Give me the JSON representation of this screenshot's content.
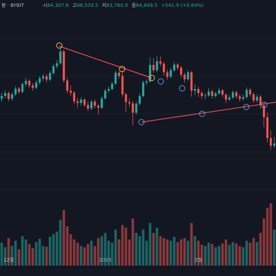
{
  "header": {
    "symbol": "봉 · BYBIT",
    "open_label": "시",
    "open": "84,307.6",
    "high_label": "고",
    "high": "86,533.5",
    "low_label": "저",
    "low": "83,760.9",
    "close_label": "종",
    "close": "84,849.5",
    "change": "+541.9 (+0.64%)"
  },
  "chart_data": {
    "type": "candlestick",
    "categories": [
      null,
      null,
      "12월",
      null,
      null,
      null,
      null,
      null,
      null,
      null,
      null,
      null,
      null,
      null,
      null,
      null,
      null,
      null,
      null,
      null,
      null,
      null,
      null,
      null,
      null,
      null,
      null,
      null,
      null,
      null,
      "2025",
      null,
      null,
      null,
      null,
      null,
      null,
      null,
      null,
      null,
      null,
      null,
      null,
      null,
      null,
      null,
      null,
      null,
      null,
      null,
      null,
      null,
      null,
      null,
      null,
      null,
      null,
      "2월",
      null,
      null,
      null,
      null,
      null,
      null,
      null,
      null,
      null,
      null,
      null,
      null,
      null,
      null,
      null,
      null,
      null,
      null,
      null,
      null,
      null,
      null
    ],
    "open": [
      95800,
      96500,
      97200,
      95800,
      96900,
      98300,
      97500,
      99400,
      100200,
      99100,
      98500,
      99800,
      100800,
      101300,
      100500,
      102100,
      103800,
      104500,
      107400,
      100300,
      97800,
      97300,
      95200,
      94800,
      95600,
      94300,
      93400,
      95100,
      94100,
      93600,
      95900,
      97800,
      98200,
      99500,
      102200,
      101400,
      96900,
      95000,
      94700,
      92400,
      94600,
      96500,
      99800,
      100100,
      104100,
      102800,
      105000,
      104400,
      102300,
      101200,
      102800,
      104200,
      103400,
      101700,
      100600,
      102300,
      97800,
      98200,
      97200,
      96500,
      96600,
      97600,
      96500,
      97100,
      97900,
      96800,
      95600,
      96100,
      97400,
      96400,
      95800,
      96200,
      98000,
      96900,
      95400,
      96300,
      94200,
      91300,
      86200,
      84307.6
    ],
    "high": [
      97300,
      97900,
      97600,
      97400,
      98900,
      98700,
      99900,
      101000,
      100600,
      99600,
      100300,
      101400,
      102000,
      101900,
      102600,
      104300,
      105300,
      108300,
      107800,
      101000,
      99100,
      97700,
      96000,
      96200,
      96000,
      95100,
      95500,
      95700,
      94500,
      96400,
      98200,
      98800,
      99900,
      102700,
      102600,
      102700,
      97300,
      95900,
      95300,
      95100,
      97100,
      100300,
      100700,
      106000,
      105800,
      106400,
      106200,
      104900,
      103000,
      103400,
      104800,
      104600,
      103900,
      102200,
      102800,
      102600,
      99400,
      98700,
      97800,
      97200,
      98400,
      98100,
      97600,
      98500,
      98200,
      97200,
      96700,
      97900,
      97800,
      96900,
      96800,
      98600,
      98400,
      97300,
      96900,
      96700,
      94500,
      92400,
      88100,
      86533.5
    ],
    "low": [
      95100,
      96000,
      95200,
      95300,
      96500,
      97000,
      97200,
      98900,
      98400,
      97800,
      98100,
      99300,
      100200,
      99800,
      100100,
      101700,
      103200,
      104100,
      99800,
      97200,
      96500,
      94500,
      93600,
      94100,
      93800,
      92800,
      93100,
      93500,
      91900,
      93300,
      95600,
      97300,
      97900,
      99200,
      100800,
      96300,
      92600,
      93800,
      89300,
      91900,
      94200,
      96200,
      99200,
      99700,
      102200,
      102300,
      103800,
      101600,
      100500,
      100800,
      102400,
      102800,
      101000,
      99700,
      100200,
      96300,
      96700,
      96200,
      95800,
      95700,
      96300,
      95900,
      96100,
      96800,
      96200,
      94800,
      95300,
      95800,
      95900,
      95100,
      95400,
      95900,
      96300,
      94800,
      95000,
      93400,
      88900,
      85100,
      83300,
      83760.9
    ],
    "close": [
      96500,
      97200,
      95800,
      96900,
      98300,
      97500,
      99400,
      100200,
      99100,
      98500,
      99800,
      100800,
      101300,
      100500,
      102100,
      103800,
      104500,
      107400,
      100300,
      97800,
      97300,
      95200,
      94800,
      95600,
      94300,
      93400,
      95100,
      94100,
      93600,
      95900,
      97800,
      98200,
      99500,
      102200,
      101400,
      96900,
      95000,
      94700,
      92400,
      94600,
      96500,
      99800,
      100100,
      104100,
      102800,
      105000,
      104400,
      102300,
      101200,
      102800,
      104200,
      103400,
      101700,
      100600,
      102300,
      97800,
      98200,
      97200,
      96500,
      96600,
      97600,
      96500,
      97100,
      97900,
      96800,
      95600,
      96100,
      97400,
      96400,
      95800,
      96200,
      98000,
      96900,
      95400,
      96300,
      94200,
      91300,
      86200,
      84307.6,
      84849.5
    ],
    "volume": [
      35,
      28,
      42,
      30,
      38,
      25,
      45,
      40,
      33,
      27,
      36,
      41,
      30,
      29,
      44,
      48,
      52,
      70,
      85,
      60,
      48,
      40,
      35,
      30,
      28,
      33,
      38,
      30,
      42,
      45,
      50,
      38,
      35,
      55,
      40,
      62,
      58,
      40,
      72,
      50,
      45,
      55,
      38,
      65,
      50,
      58,
      45,
      42,
      40,
      38,
      44,
      36,
      40,
      42,
      38,
      65,
      45,
      38,
      32,
      30,
      35,
      33,
      28,
      30,
      34,
      40,
      32,
      36,
      34,
      30,
      28,
      38,
      35,
      42,
      36,
      50,
      72,
      88,
      95,
      55
    ],
    "ylim": [
      71000,
      120000
    ],
    "volume_lim": [
      0,
      100
    ],
    "up_color": "#26a69a",
    "down_color": "#ef5350"
  }
}
